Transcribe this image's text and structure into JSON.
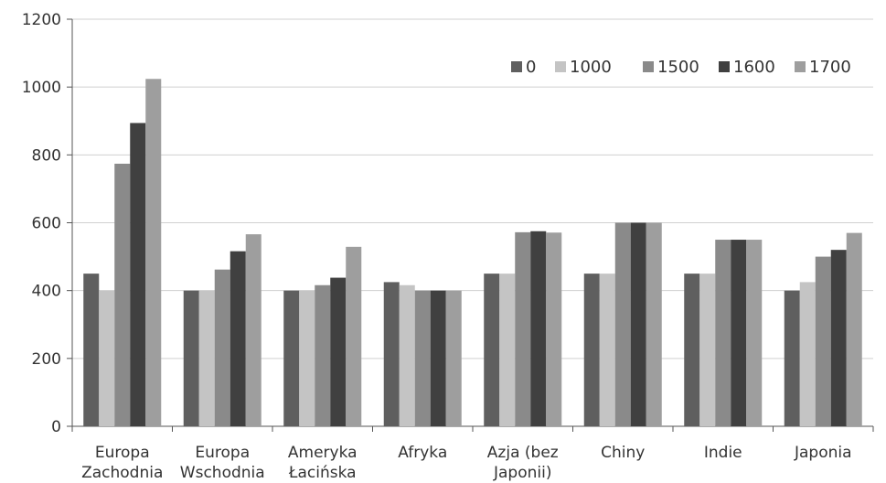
{
  "chart_data": {
    "type": "bar",
    "categories": [
      [
        "Europa",
        "Zachodnia"
      ],
      [
        "Europa",
        "Wschodnia"
      ],
      [
        "Ameryka",
        "Łacińska"
      ],
      [
        "Afryka"
      ],
      [
        "Azja (bez",
        "Japonii)"
      ],
      [
        "Chiny"
      ],
      [
        "Indie"
      ],
      [
        "Japonia"
      ]
    ],
    "series": [
      {
        "name": "0",
        "color": "#5f5f5f",
        "values": [
          450,
          400,
          400,
          425,
          450,
          450,
          450,
          400
        ]
      },
      {
        "name": "1000",
        "color": "#c4c4c4",
        "values": [
          400,
          400,
          400,
          416,
          450,
          450,
          450,
          425
        ]
      },
      {
        "name": "1500",
        "color": "#8a8a8a",
        "values": [
          774,
          462,
          416,
          400,
          572,
          600,
          550,
          500
        ]
      },
      {
        "name": "1600",
        "color": "#404040",
        "values": [
          894,
          516,
          438,
          400,
          575,
          600,
          550,
          520
        ]
      },
      {
        "name": "1700",
        "color": "#9e9e9e",
        "values": [
          1024,
          566,
          529,
          400,
          571,
          600,
          550,
          570
        ]
      }
    ],
    "ylim": [
      0,
      1200
    ],
    "yticks": [
      "0",
      "200",
      "400",
      "600",
      "800",
      "1000",
      "1200"
    ],
    "grid": true,
    "legend_position": "top-right",
    "title": "",
    "xlabel": "",
    "ylabel": ""
  }
}
